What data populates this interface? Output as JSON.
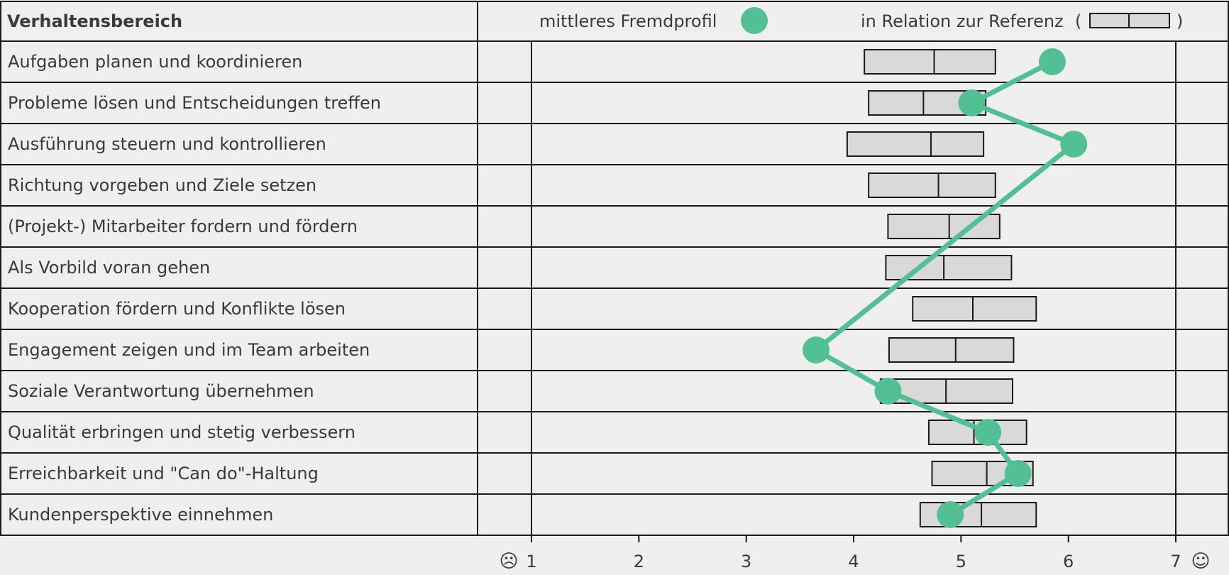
{
  "header": {
    "category_title": "Verhaltensbereich",
    "legend_profile_label": "mittleres Fremdprofil",
    "legend_reference_label": "in Relation zur Referenz",
    "paren_open": "(",
    "paren_close": ")"
  },
  "colors": {
    "profile": "#52bf95",
    "box_fill": "#d9d9d9",
    "box_stroke": "#1a1a1a",
    "grid": "#1a1a1a",
    "background": "#efefef"
  },
  "icons": {
    "left_end": "sad-face-icon",
    "right_end": "smiley-face-icon"
  },
  "left_face_glyph": "☹",
  "right_face_glyph": "☺",
  "chart_data": {
    "type": "dot-plot-with-reference-boxes",
    "xlim": [
      1,
      7
    ],
    "x_ticks": [
      1,
      2,
      3,
      4,
      5,
      6,
      7
    ],
    "x_tick_labels": [
      "1",
      "2",
      "3",
      "4",
      "5",
      "6",
      "7"
    ],
    "categories": [
      "Aufgaben planen und koordinieren",
      "Probleme lösen und Entscheidungen treffen",
      "Ausführung steuern und kontrollieren",
      "Richtung vorgeben und Ziele setzen",
      "(Projekt-) Mitarbeiter fordern und fördern",
      "Als Vorbild voran gehen",
      "Kooperation fördern und Konflikte lösen",
      "Engagement zeigen und im Team arbeiten",
      "Soziale Verantwortung übernehmen",
      "Qualität erbringen und stetig verbessern",
      "Erreichbarkeit und \"Can do\"-Haltung",
      "Kundenperspektive einnehmen"
    ],
    "series": [
      {
        "name": "mittleres Fremdprofil",
        "values": [
          5.85,
          5.1,
          6.05,
          null,
          null,
          null,
          null,
          3.65,
          4.32,
          5.25,
          5.53,
          4.9
        ]
      }
    ],
    "reference_boxes": [
      {
        "low": 4.1,
        "mid": 4.75,
        "high": 5.32
      },
      {
        "low": 4.14,
        "mid": 4.65,
        "high": 5.23
      },
      {
        "low": 3.94,
        "mid": 4.72,
        "high": 5.21
      },
      {
        "low": 4.14,
        "mid": 4.79,
        "high": 5.32
      },
      {
        "low": 4.32,
        "mid": 4.89,
        "high": 5.36
      },
      {
        "low": 4.3,
        "mid": 4.84,
        "high": 5.47
      },
      {
        "low": 4.55,
        "mid": 5.11,
        "high": 5.7
      },
      {
        "low": 4.33,
        "mid": 4.95,
        "high": 5.49
      },
      {
        "low": 4.25,
        "mid": 4.86,
        "high": 5.48
      },
      {
        "low": 4.7,
        "mid": 5.12,
        "high": 5.61
      },
      {
        "low": 4.73,
        "mid": 5.24,
        "high": 5.67
      },
      {
        "low": 4.62,
        "mid": 5.19,
        "high": 5.7
      }
    ],
    "grid": true
  }
}
